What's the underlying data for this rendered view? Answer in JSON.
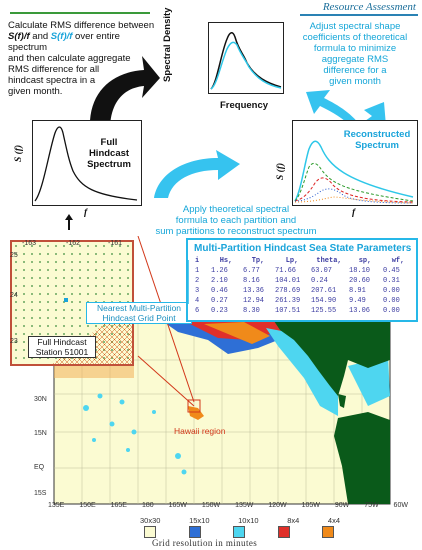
{
  "header": {
    "title": "Resource Assessment"
  },
  "left_text": {
    "line1": "Calculate RMS difference between",
    "line2_a": "S(f)/f",
    "line2_b": " and ",
    "line2_c": "S(f)/f",
    "line2_d": " over entire spectrum",
    "line3": "and then calculate aggregate",
    "line4": "RMS difference for all",
    "line5": "hindcast spectra in a",
    "line6": "given month."
  },
  "right_text": {
    "line1": "Adjust spectral shape",
    "line2": "coefficients of theoretical",
    "line3": "formula to minimize",
    "line4": "aggregate RMS",
    "line5": "difference for a",
    "line6": "given month"
  },
  "top_plot": {
    "ylabel": "Spectral Density",
    "xlabel": "Frequency"
  },
  "full_plot": {
    "title_line1": "Full Hindcast",
    "title_line2": "Spectrum",
    "ylabel": "S (f)",
    "xlabel": "f"
  },
  "recon_plot": {
    "title_line1": "Reconstructed",
    "title_line2": "Spectrum",
    "ylabel": "S (f)",
    "xlabel": "f"
  },
  "middle_text": {
    "line1": "Apply theoretical spectral",
    "line2": "formula to each partition and",
    "line3": "sum partitions to reconstruct spectrum"
  },
  "inset": {
    "lon_labels": [
      "-163",
      "-162",
      "-161"
    ],
    "lat_labels": [
      "25",
      "24",
      "23"
    ]
  },
  "table": {
    "title": "Multi-Partition Hindcast Sea State Parameters",
    "headers": [
      "i",
      "Hs,",
      "Tp,",
      "Lp,",
      "theta,",
      "sp,",
      "wf,"
    ],
    "rows": [
      [
        "1",
        "1.26",
        "6.77",
        "71.66",
        "63.07",
        "18.10",
        "0.45"
      ],
      [
        "2",
        "2.10",
        "8.16",
        "104.01",
        "0.24",
        "20.60",
        "0.31"
      ],
      [
        "3",
        "0.46",
        "13.36",
        "278.69",
        "207.61",
        "8.91",
        "0.00"
      ],
      [
        "4",
        "0.27",
        "12.94",
        "261.39",
        "154.90",
        "9.49",
        "0.00"
      ],
      [
        "6",
        "0.23",
        "8.30",
        "107.51",
        "125.55",
        "13.06",
        "0.00"
      ]
    ]
  },
  "callout": {
    "line1": "Nearest Multi-Partition",
    "line2": "Hindcast Grid Point"
  },
  "station": {
    "line1": "Full Hindcast",
    "line2": "Station 51001"
  },
  "map": {
    "region_label": "Hawaii region",
    "lat_labels": [
      "30N",
      "15N",
      "EQ",
      "15S"
    ],
    "lon_labels": [
      "135E",
      "150E",
      "165E",
      "180",
      "165W",
      "150W",
      "135W",
      "120W",
      "105W",
      "90W",
      "75W",
      "60W"
    ]
  },
  "legend": {
    "items": [
      {
        "label": "30x30",
        "color": "#fbfbd2"
      },
      {
        "label": "15x10",
        "color": "#2e6fd6"
      },
      {
        "label": "10x10",
        "color": "#4ed6f0"
      },
      {
        "label": "8x4",
        "color": "#e0302a"
      },
      {
        "label": "4x4",
        "color": "#f08a1a"
      }
    ],
    "caption": "Grid resolution in minutes"
  }
}
